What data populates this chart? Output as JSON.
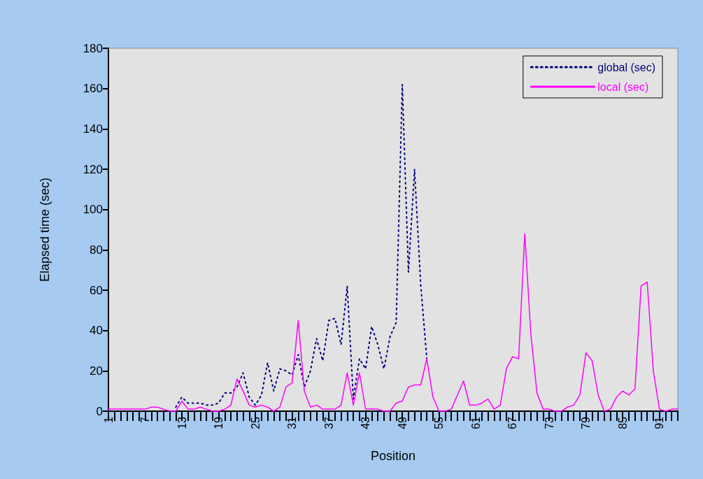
{
  "chart_data": {
    "type": "line",
    "xlabel": "Position",
    "ylabel": "Elapsed time (sec)",
    "categories": [
      "1",
      null,
      null,
      null,
      null,
      null,
      "7",
      null,
      null,
      null,
      null,
      null,
      "13",
      null,
      null,
      null,
      null,
      null,
      "19",
      null,
      null,
      null,
      null,
      null,
      "25",
      null,
      null,
      null,
      null,
      null,
      "31",
      null,
      null,
      null,
      null,
      null,
      "37",
      null,
      null,
      null,
      null,
      null,
      "43",
      null,
      null,
      null,
      null,
      null,
      "49",
      null,
      null,
      null,
      null,
      null,
      "55",
      null,
      null,
      null,
      null,
      null,
      "61",
      null,
      null,
      null,
      null,
      null,
      "67",
      null,
      null,
      null,
      null,
      null,
      "73",
      null,
      null,
      null,
      null,
      null,
      "79",
      null,
      null,
      null,
      null,
      null,
      "85",
      null,
      null,
      null,
      null,
      null,
      "91",
      null,
      null,
      null
    ],
    "series": [
      {
        "name": "global (sec)",
        "color": "#000080",
        "line_style": "dotted",
        "values": [
          null,
          null,
          null,
          null,
          null,
          null,
          null,
          null,
          null,
          null,
          null,
          2,
          7,
          4,
          4,
          4,
          3,
          3,
          4,
          9,
          9,
          12,
          19,
          7,
          3,
          8,
          24,
          10,
          21,
          20,
          18,
          28,
          12,
          20,
          36,
          25,
          45,
          46,
          33,
          62,
          6,
          26,
          21,
          42,
          33,
          21,
          37,
          44,
          162,
          69,
          120,
          63,
          26,
          null,
          null,
          null,
          null,
          null,
          null,
          null,
          null,
          null,
          null,
          null,
          null,
          null,
          null,
          null,
          null,
          null,
          null,
          null,
          null,
          null,
          null,
          null,
          null,
          null,
          null,
          null,
          null,
          null,
          null,
          null,
          null,
          null,
          null,
          null,
          null,
          null,
          null,
          null,
          null,
          null
        ]
      },
      {
        "name": "local (sec)",
        "color": "#ff00ff",
        "line_style": "solid",
        "values": [
          1,
          1,
          1,
          1,
          1,
          1,
          1,
          2,
          2,
          1,
          0,
          0,
          5,
          1,
          1,
          2,
          1,
          0,
          0,
          1,
          3,
          16,
          10,
          3,
          2,
          3,
          2,
          0,
          2,
          12,
          14,
          45,
          10,
          2,
          3,
          1,
          1,
          1,
          3,
          19,
          3,
          19,
          1,
          1,
          1,
          0,
          0,
          4,
          5,
          12,
          13,
          13,
          26,
          7,
          0,
          0,
          1,
          8,
          15,
          3,
          3,
          4,
          6,
          1,
          3,
          21,
          27,
          26,
          88,
          38,
          9,
          1,
          1,
          0,
          0,
          2,
          3,
          8,
          29,
          25,
          8,
          0,
          1,
          7,
          10,
          8,
          11,
          62,
          64,
          20,
          1,
          0,
          1,
          1
        ]
      }
    ],
    "ylim": [
      0,
      180
    ],
    "yticks": [
      0,
      20,
      40,
      60,
      80,
      100,
      120,
      140,
      160,
      180
    ],
    "grid": false,
    "legend": "top right",
    "marker": "none"
  }
}
